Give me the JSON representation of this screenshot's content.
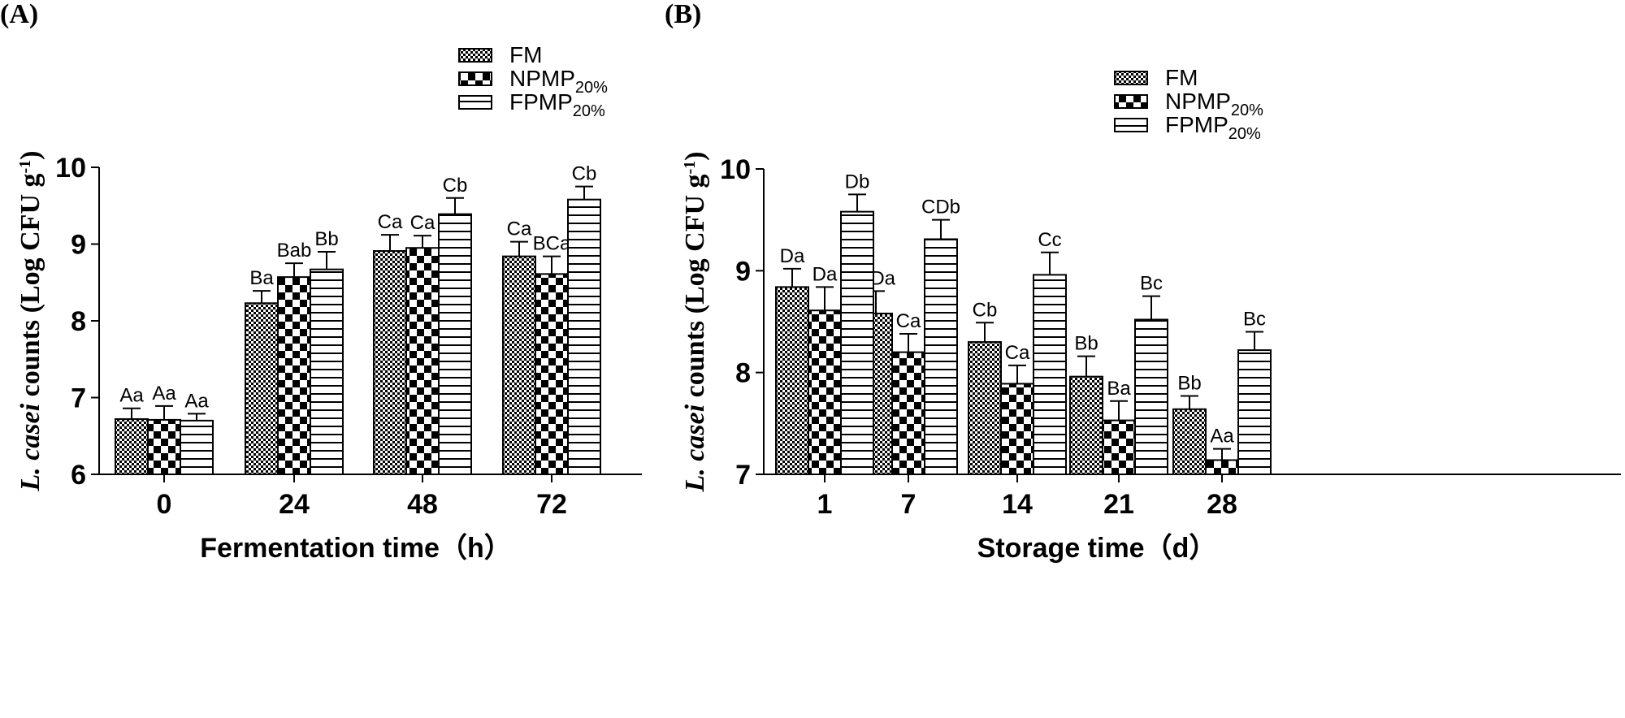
{
  "chart_data": [
    {
      "type": "bar",
      "panel_label": "(A)",
      "xlabel": "Fermentation time（h）",
      "ylabel_italic": "L. casei",
      "ylabel_rest": " counts (Log CFU g",
      "ylabel_sup": "-1",
      "ylabel_close": ")",
      "categories": [
        "0",
        "24",
        "48",
        "72"
      ],
      "ylim": [
        6,
        10
      ],
      "yticks": [
        "6",
        "7",
        "8",
        "9",
        "10"
      ],
      "legend_position": "top-right",
      "series": [
        {
          "name": "FM",
          "name_sub": "",
          "pattern": "dots",
          "values": [
            6.72,
            8.23,
            8.91,
            8.84
          ],
          "errors": [
            0.14,
            0.16,
            0.21,
            0.19
          ],
          "labels": [
            "Aa",
            "Ba",
            "Ca",
            "Ca"
          ]
        },
        {
          "name": "NPMP",
          "name_sub": "20%",
          "pattern": "checker",
          "values": [
            6.71,
            8.57,
            8.95,
            8.61
          ],
          "errors": [
            0.18,
            0.18,
            0.16,
            0.23
          ],
          "labels": [
            "Aa",
            "Bab",
            "Ca",
            "BCa"
          ]
        },
        {
          "name": "FPMP",
          "name_sub": "20%",
          "pattern": "hlines",
          "values": [
            6.7,
            8.67,
            9.39,
            9.58
          ],
          "errors": [
            0.09,
            0.23,
            0.21,
            0.17
          ],
          "labels": [
            "Aa",
            "Bb",
            "Cb",
            "Cb"
          ]
        }
      ]
    },
    {
      "type": "bar",
      "panel_label": "(B)",
      "xlabel": "Storage time（d）",
      "ylabel_italic": "L. casei",
      "ylabel_rest": " counts (Log CFU g",
      "ylabel_sup": "-1",
      "ylabel_close": ")",
      "categories": [
        "1",
        "7",
        "14",
        "21",
        "28"
      ],
      "ylim": [
        7,
        10
      ],
      "yticks": [
        "7",
        "8",
        "9",
        "10"
      ],
      "legend_position": "top-right",
      "series": [
        {
          "name": "FM",
          "name_sub": "",
          "pattern": "dots",
          "values": [
            8.84,
            8.58,
            8.3,
            7.96,
            7.64
          ],
          "errors": [
            0.18,
            0.22,
            0.19,
            0.2,
            0.13
          ],
          "labels": [
            "Da",
            "CDa",
            "Cb",
            "Bb",
            "Bb"
          ]
        },
        {
          "name": "NPMP",
          "name_sub": "20%",
          "pattern": "checker",
          "values": [
            8.61,
            8.2,
            7.89,
            7.53,
            7.14
          ],
          "errors": [
            0.23,
            0.18,
            0.18,
            0.19,
            0.11
          ],
          "labels": [
            "Da",
            "Ca",
            "Ca",
            "Ba",
            "Aa"
          ]
        },
        {
          "name": "FPMP",
          "name_sub": "20%",
          "pattern": "hlines",
          "values": [
            9.58,
            9.31,
            8.96,
            8.52,
            8.22
          ],
          "errors": [
            0.17,
            0.19,
            0.22,
            0.23,
            0.18
          ],
          "labels": [
            "Db",
            "CDb",
            "Cc",
            "Bc",
            "Bc"
          ]
        }
      ]
    }
  ]
}
